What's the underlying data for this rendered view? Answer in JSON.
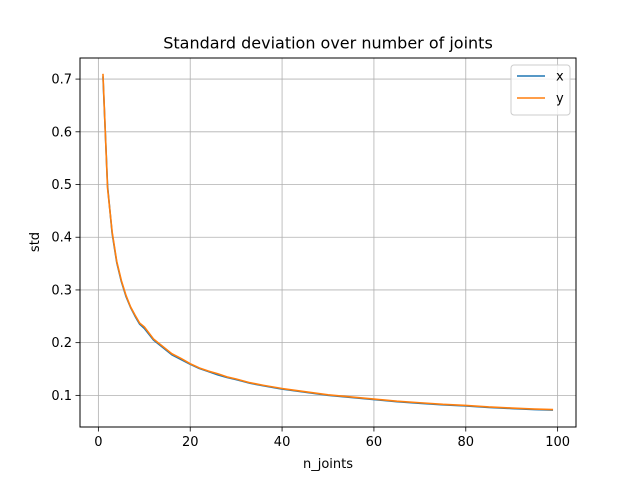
{
  "chart_data": {
    "type": "line",
    "title": "Standard deviation over number of joints",
    "xlabel": "n_joints",
    "ylabel": "std",
    "xlim": [
      -4,
      104
    ],
    "ylim": [
      0.04,
      0.74
    ],
    "xticks": [
      0,
      20,
      40,
      60,
      80,
      100
    ],
    "yticks": [
      0.1,
      0.2,
      0.3,
      0.4,
      0.5,
      0.6,
      0.7
    ],
    "grid": true,
    "legend": "top-right",
    "series": [
      {
        "name": "x",
        "color": "#1f77b4",
        "x": [
          1,
          2,
          3,
          4,
          5,
          6,
          7,
          8,
          9,
          10,
          12,
          14,
          16,
          18,
          20,
          22,
          24,
          26,
          28,
          30,
          33,
          36,
          40,
          45,
          50,
          55,
          60,
          65,
          70,
          75,
          80,
          85,
          90,
          95,
          99
        ],
        "y": [
          0.705,
          0.497,
          0.407,
          0.352,
          0.316,
          0.288,
          0.267,
          0.25,
          0.235,
          0.227,
          0.205,
          0.191,
          0.177,
          0.168,
          0.159,
          0.151,
          0.145,
          0.139,
          0.134,
          0.13,
          0.123,
          0.118,
          0.112,
          0.106,
          0.1,
          0.096,
          0.092,
          0.088,
          0.085,
          0.082,
          0.08,
          0.077,
          0.075,
          0.073,
          0.072
        ]
      },
      {
        "name": "y",
        "color": "#ff7f0e",
        "x": [
          1,
          2,
          3,
          4,
          5,
          6,
          7,
          8,
          9,
          10,
          12,
          14,
          16,
          18,
          20,
          22,
          24,
          26,
          28,
          30,
          33,
          36,
          40,
          45,
          50,
          55,
          60,
          65,
          70,
          75,
          80,
          85,
          90,
          95,
          99
        ],
        "y": [
          0.71,
          0.493,
          0.41,
          0.354,
          0.318,
          0.29,
          0.268,
          0.252,
          0.237,
          0.23,
          0.207,
          0.193,
          0.179,
          0.17,
          0.16,
          0.152,
          0.146,
          0.141,
          0.135,
          0.131,
          0.124,
          0.119,
          0.113,
          0.107,
          0.101,
          0.097,
          0.093,
          0.089,
          0.086,
          0.083,
          0.081,
          0.078,
          0.076,
          0.074,
          0.073
        ]
      }
    ]
  }
}
